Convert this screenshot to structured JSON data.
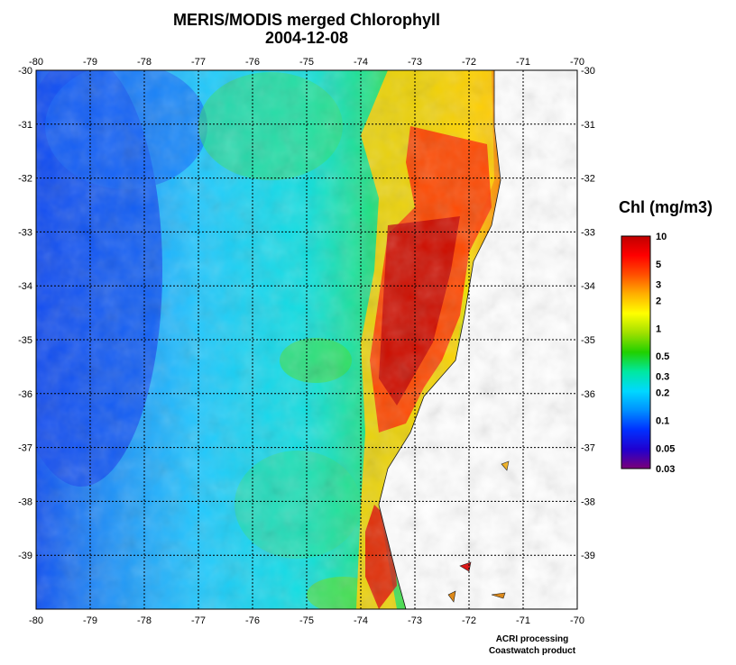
{
  "map": {
    "title": "MERIS/MODIS merged Chlorophyll",
    "date": "2004-12-08",
    "lon_ticks": [
      "-80",
      "-79",
      "-78",
      "-77",
      "-76",
      "-75",
      "-74",
      "-73",
      "-72",
      "-71",
      "-70"
    ],
    "lat_ticks": [
      "-30",
      "-31",
      "-32",
      "-33",
      "-34",
      "-35",
      "-36",
      "-37",
      "-38",
      "-39"
    ],
    "lon_range": [
      -80,
      -70
    ],
    "lat_range": [
      -40,
      -30
    ],
    "grid": true,
    "land_color": "#ffffff"
  },
  "colorbar": {
    "title": "Chl (mg/m3)",
    "labels": [
      "10",
      "5",
      "3",
      "2",
      "1",
      "0.5",
      "0.3",
      "0.2",
      "0.1",
      "0.05",
      "0.03"
    ],
    "values": [
      10,
      5,
      3,
      2,
      1,
      0.5,
      0.3,
      0.2,
      0.1,
      0.05,
      0.03
    ],
    "range": [
      0.03,
      10
    ],
    "scale": "log",
    "colors": [
      "#7a0078",
      "#2000d0",
      "#0030ff",
      "#0090ff",
      "#00d8ff",
      "#00e8a0",
      "#20d000",
      "#a0e000",
      "#ffff00",
      "#ffb000",
      "#ff5000",
      "#ff0000",
      "#c00000"
    ]
  },
  "credits": {
    "line1": "ACRI processing",
    "line2": "Coastwatch product"
  }
}
